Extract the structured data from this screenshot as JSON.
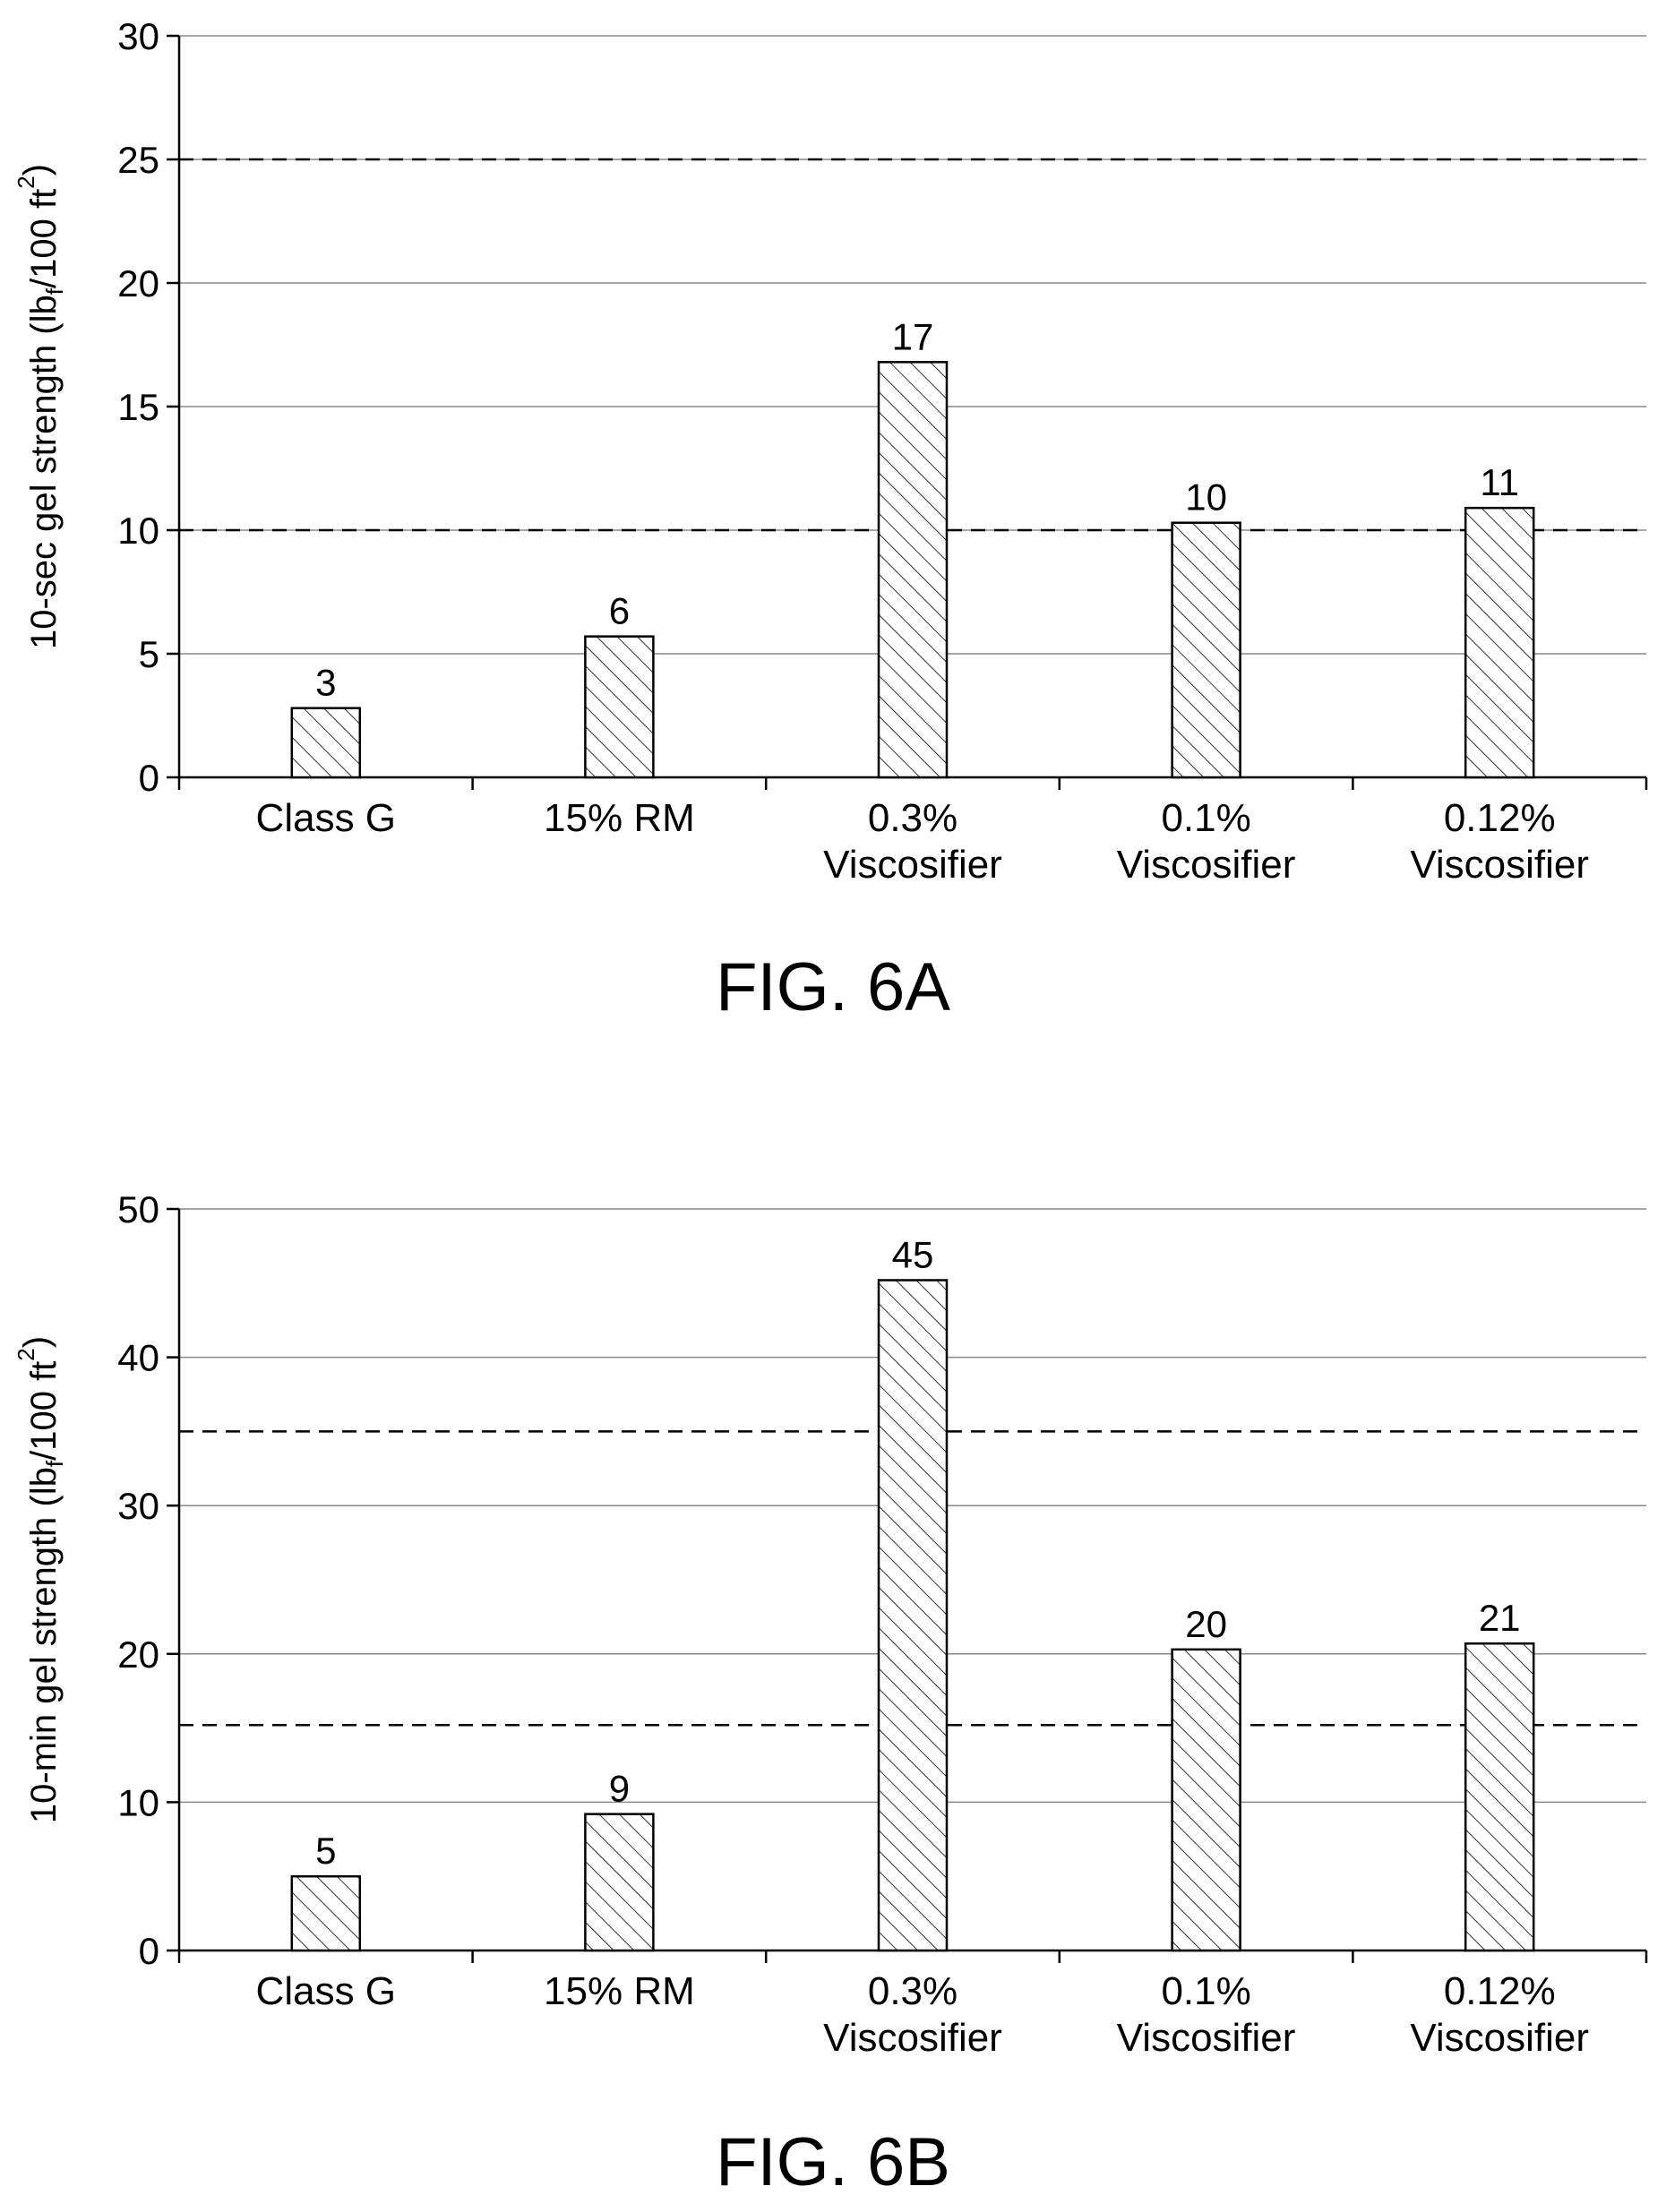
{
  "chart_data": [
    {
      "type": "bar",
      "caption": "FIG. 6A",
      "ylabel_main": "10-sec gel strength (lb",
      "ylabel_sub": "f",
      "ylabel_mid": "/100 ft",
      "ylabel_sup": "2",
      "ylabel_end": ")",
      "categories": [
        [
          "Class G"
        ],
        [
          "15% RM"
        ],
        [
          "0.3%",
          "Viscosifier"
        ],
        [
          "0.1%",
          "Viscosifier"
        ],
        [
          "0.12%",
          "Viscosifier"
        ]
      ],
      "values": [
        2.8,
        5.7,
        16.8,
        10.3,
        10.9
      ],
      "data_labels": [
        "3",
        "6",
        "17",
        "10",
        "11"
      ],
      "ylim": [
        0,
        30
      ],
      "yticks": [
        0,
        5,
        10,
        15,
        20,
        25,
        30
      ],
      "dashed_lines": [
        10,
        25
      ],
      "grid": true
    },
    {
      "type": "bar",
      "caption": "FIG. 6B",
      "ylabel_main": "10-min gel strength (lb",
      "ylabel_sub": "f",
      "ylabel_mid": "/100 ft",
      "ylabel_sup": "2",
      "ylabel_end": ")",
      "categories": [
        [
          "Class G"
        ],
        [
          "15% RM"
        ],
        [
          "0.3%",
          "Viscosifier"
        ],
        [
          "0.1%",
          "Viscosifier"
        ],
        [
          "0.12%",
          "Viscosifier"
        ]
      ],
      "values": [
        5.0,
        9.2,
        45.2,
        20.3,
        20.7
      ],
      "data_labels": [
        "5",
        "9",
        "45",
        "20",
        "21"
      ],
      "ylim": [
        0,
        50
      ],
      "yticks": [
        0,
        10,
        20,
        30,
        40,
        50
      ],
      "dashed_lines": [
        15.2,
        35
      ],
      "grid": true
    }
  ]
}
